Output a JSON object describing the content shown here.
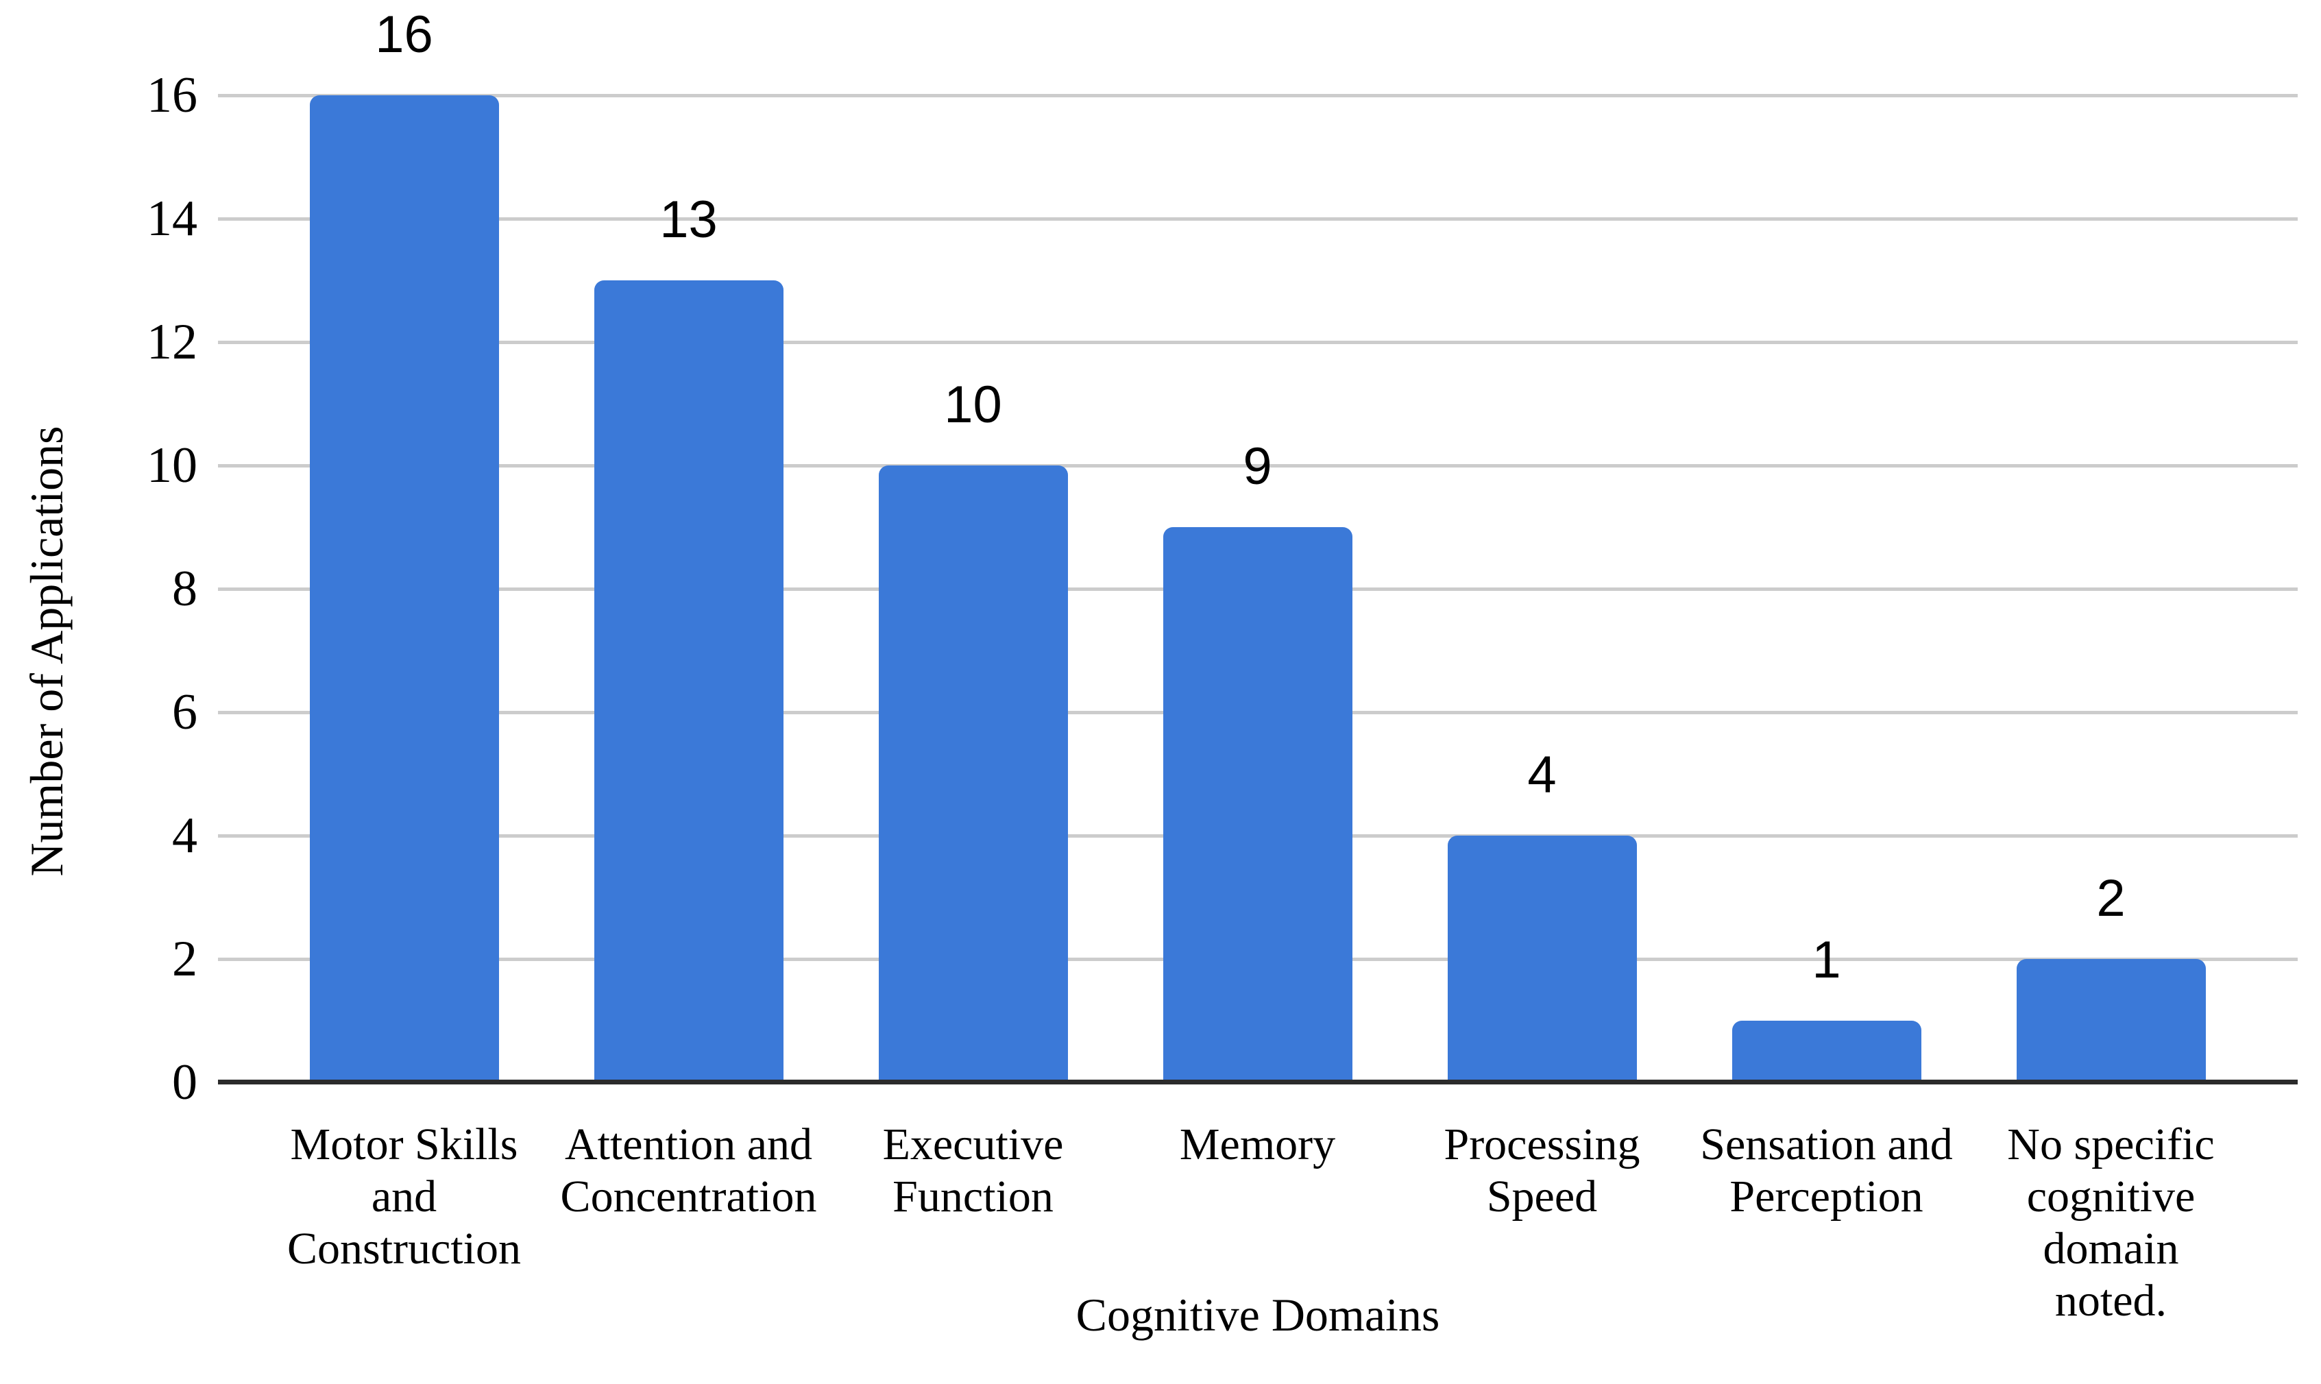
{
  "chart_data": {
    "type": "bar",
    "title": "",
    "xlabel": "Cognitive Domains",
    "ylabel": "Number of Applications",
    "categories": [
      "Motor Skills and Construction",
      "Attention and Concentration",
      "Executive Function",
      "Memory",
      "Processing Speed",
      "Sensation and Perception",
      "No specific cognitive domain noted."
    ],
    "category_lines": [
      [
        "Motor Skills",
        "and",
        "Construction"
      ],
      [
        "Attention and",
        "Concentration"
      ],
      [
        "Executive",
        "Function"
      ],
      [
        "Memory"
      ],
      [
        "Processing",
        "Speed"
      ],
      [
        "Sensation and",
        "Perception"
      ],
      [
        "No specific",
        "cognitive",
        "domain",
        "noted."
      ]
    ],
    "values": [
      16,
      13,
      10,
      9,
      4,
      1,
      2
    ],
    "data_labels": [
      "16",
      "13",
      "10",
      "9",
      "4",
      "1",
      "2"
    ],
    "ylim": [
      0,
      16
    ],
    "yticks": [
      0,
      2,
      4,
      6,
      8,
      10,
      12,
      14,
      16
    ],
    "grid": true,
    "legend": "none",
    "colors": {
      "bar": "#3B79D8",
      "gridline": "#CCCCCC",
      "axis_line": "#2B2B2B",
      "text": "#000000",
      "background": "#FFFFFF"
    }
  }
}
